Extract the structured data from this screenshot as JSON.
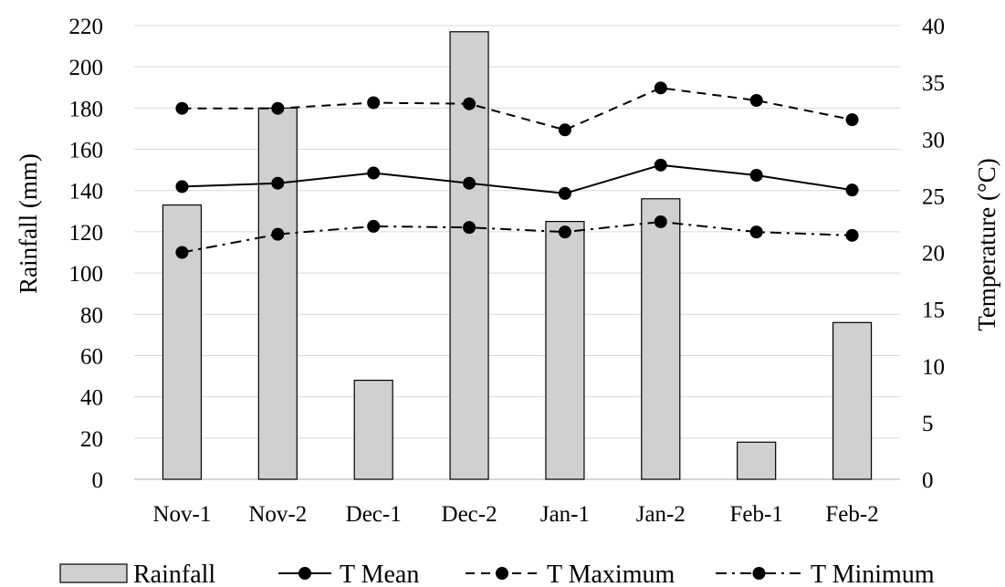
{
  "chart_data": {
    "type": "bar",
    "categories": [
      "Nov-1",
      "Nov-2",
      "Dec-1",
      "Dec-2",
      "Jan-1",
      "Jan-2",
      "Feb-1",
      "Feb-2"
    ],
    "bar_series": {
      "name": "Rainfall",
      "values": [
        133,
        180,
        48,
        217,
        125,
        136,
        18,
        76
      ],
      "axis": "left",
      "color": "#d0d0d0"
    },
    "line_series": [
      {
        "name": "T Mean",
        "values": [
          25.8,
          26.1,
          27.0,
          26.1,
          25.2,
          27.7,
          26.8,
          25.5
        ],
        "axis": "right",
        "dash": "solid"
      },
      {
        "name": "T Maximum",
        "values": [
          32.7,
          32.7,
          33.2,
          33.1,
          30.8,
          34.5,
          33.4,
          31.7
        ],
        "axis": "right",
        "dash": "dashed"
      },
      {
        "name": "T Minimum",
        "values": [
          20.0,
          21.6,
          22.3,
          22.2,
          21.8,
          22.7,
          21.8,
          21.5
        ],
        "axis": "right",
        "dash": "dash-dot"
      }
    ],
    "ylabel": "Rainfall (mm)",
    "y2label": "Temperature (°C)",
    "ylim": [
      0,
      220
    ],
    "y2lim": [
      0,
      40
    ],
    "yticks": [
      "0",
      "20",
      "40",
      "60",
      "80",
      "100",
      "120",
      "140",
      "160",
      "180",
      "200",
      "220"
    ],
    "y2ticks": [
      "0",
      "5",
      "10",
      "15",
      "20",
      "25",
      "30",
      "35",
      "40"
    ],
    "grid": true,
    "legend_position": "bottom",
    "legend": [
      "Rainfall",
      "T Mean",
      "T Maximum",
      "T Minimum"
    ]
  }
}
